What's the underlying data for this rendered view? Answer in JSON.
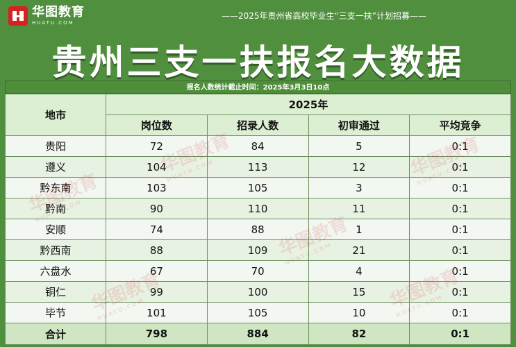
{
  "header": {
    "logo_text": "华图教育",
    "logo_sub": "HUATU.COM",
    "note": "——2025年贵州省高校毕业生“三支一扶”计划招募——",
    "title": "贵州三支一扶报名大数据",
    "stat_time": "报名人数统计截止时间：2025年3月3日10点"
  },
  "table": {
    "region_header": "地市",
    "year_header": "2025年",
    "columns": [
      "岗位数",
      "招录人数",
      "初审通过",
      "平均竞争"
    ],
    "rows": [
      {
        "region": "贵阳",
        "positions": "72",
        "hires": "84",
        "passed": "5",
        "ratio": "0:1"
      },
      {
        "region": "遵义",
        "positions": "104",
        "hires": "113",
        "passed": "12",
        "ratio": "0:1"
      },
      {
        "region": "黔东南",
        "positions": "103",
        "hires": "105",
        "passed": "3",
        "ratio": "0:1"
      },
      {
        "region": "黔南",
        "positions": "90",
        "hires": "110",
        "passed": "11",
        "ratio": "0:1"
      },
      {
        "region": "安顺",
        "positions": "74",
        "hires": "88",
        "passed": "1",
        "ratio": "0:1"
      },
      {
        "region": "黔西南",
        "positions": "88",
        "hires": "109",
        "passed": "21",
        "ratio": "0:1"
      },
      {
        "region": "六盘水",
        "positions": "67",
        "hires": "70",
        "passed": "4",
        "ratio": "0:1"
      },
      {
        "region": "铜仁",
        "positions": "99",
        "hires": "100",
        "passed": "15",
        "ratio": "0:1"
      },
      {
        "region": "毕节",
        "positions": "101",
        "hires": "105",
        "passed": "10",
        "ratio": "0:1"
      }
    ],
    "total": {
      "region": "合计",
      "positions": "798",
      "hires": "884",
      "passed": "82",
      "ratio": "0:1"
    }
  },
  "watermark": {
    "text": "华图教育",
    "sub": "HUATU.COM"
  }
}
